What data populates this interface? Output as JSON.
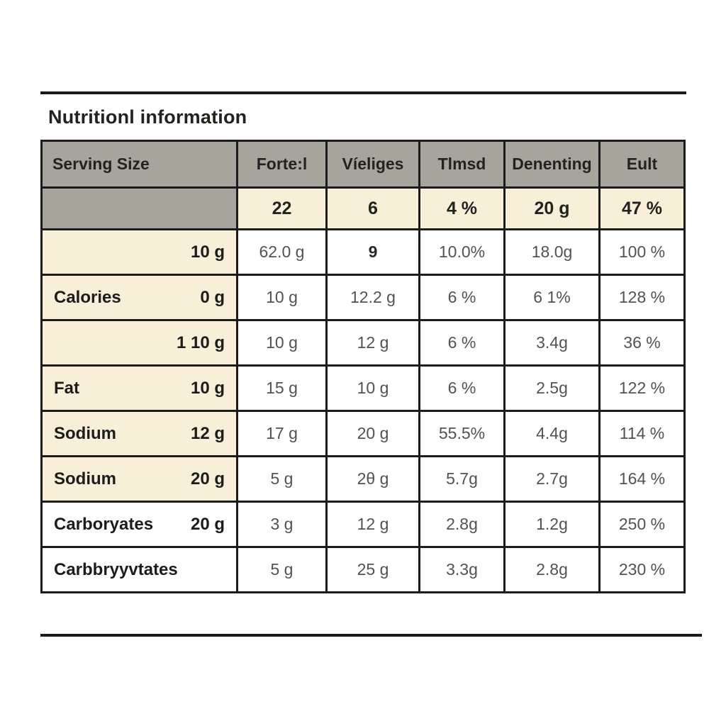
{
  "title": "Nutritionl information",
  "table": {
    "headers": [
      "Serving Size",
      "Forte:l",
      "Víeliges",
      "Tlmsd",
      "Denenting",
      "Eult"
    ],
    "summary": {
      "values": [
        "22",
        "6",
        "4 %",
        "20 g",
        "47 %"
      ]
    },
    "rows": [
      {
        "label": "",
        "amount": "10 g",
        "values": [
          "62.0 g",
          "9",
          "10.0%",
          "18.0g",
          "100 %"
        ]
      },
      {
        "label": "Calories",
        "amount": "0 g",
        "values": [
          "10 g",
          "12.2 g",
          "6 %",
          "6 1%",
          "128 %"
        ]
      },
      {
        "label": "",
        "amount": "1 10 g",
        "values": [
          "10 g",
          "12 g",
          "6 %",
          "3.4g",
          "36 %"
        ]
      },
      {
        "label": "Fat",
        "amount": "10 g",
        "values": [
          "15 g",
          "10 g",
          "6 %",
          "2.5g",
          "122 %"
        ]
      },
      {
        "label": "Sodium",
        "amount": "12 g",
        "values": [
          "17 g",
          "20 g",
          "55.5%",
          "4.4g",
          "114 %"
        ]
      },
      {
        "label": "Sodium",
        "amount": "20 g",
        "values": [
          "5 g",
          "2θ g",
          "5.7g",
          "2.7g",
          "164 %"
        ]
      },
      {
        "label": "Carboryates",
        "amount": "20 g",
        "values": [
          "3 g",
          "12 g",
          "2.8g",
          "1.2g",
          "250 %"
        ]
      },
      {
        "label": "Carbbryyvtates",
        "amount": "",
        "values": [
          "5 g",
          "25 g",
          "3.3g",
          "2.8g",
          "230 %"
        ]
      }
    ]
  },
  "colors": {
    "header_gray": "#a7a49c",
    "highlight_cream": "#f7efd8",
    "border_black": "#1b1b1b",
    "data_text": "#54524e"
  }
}
